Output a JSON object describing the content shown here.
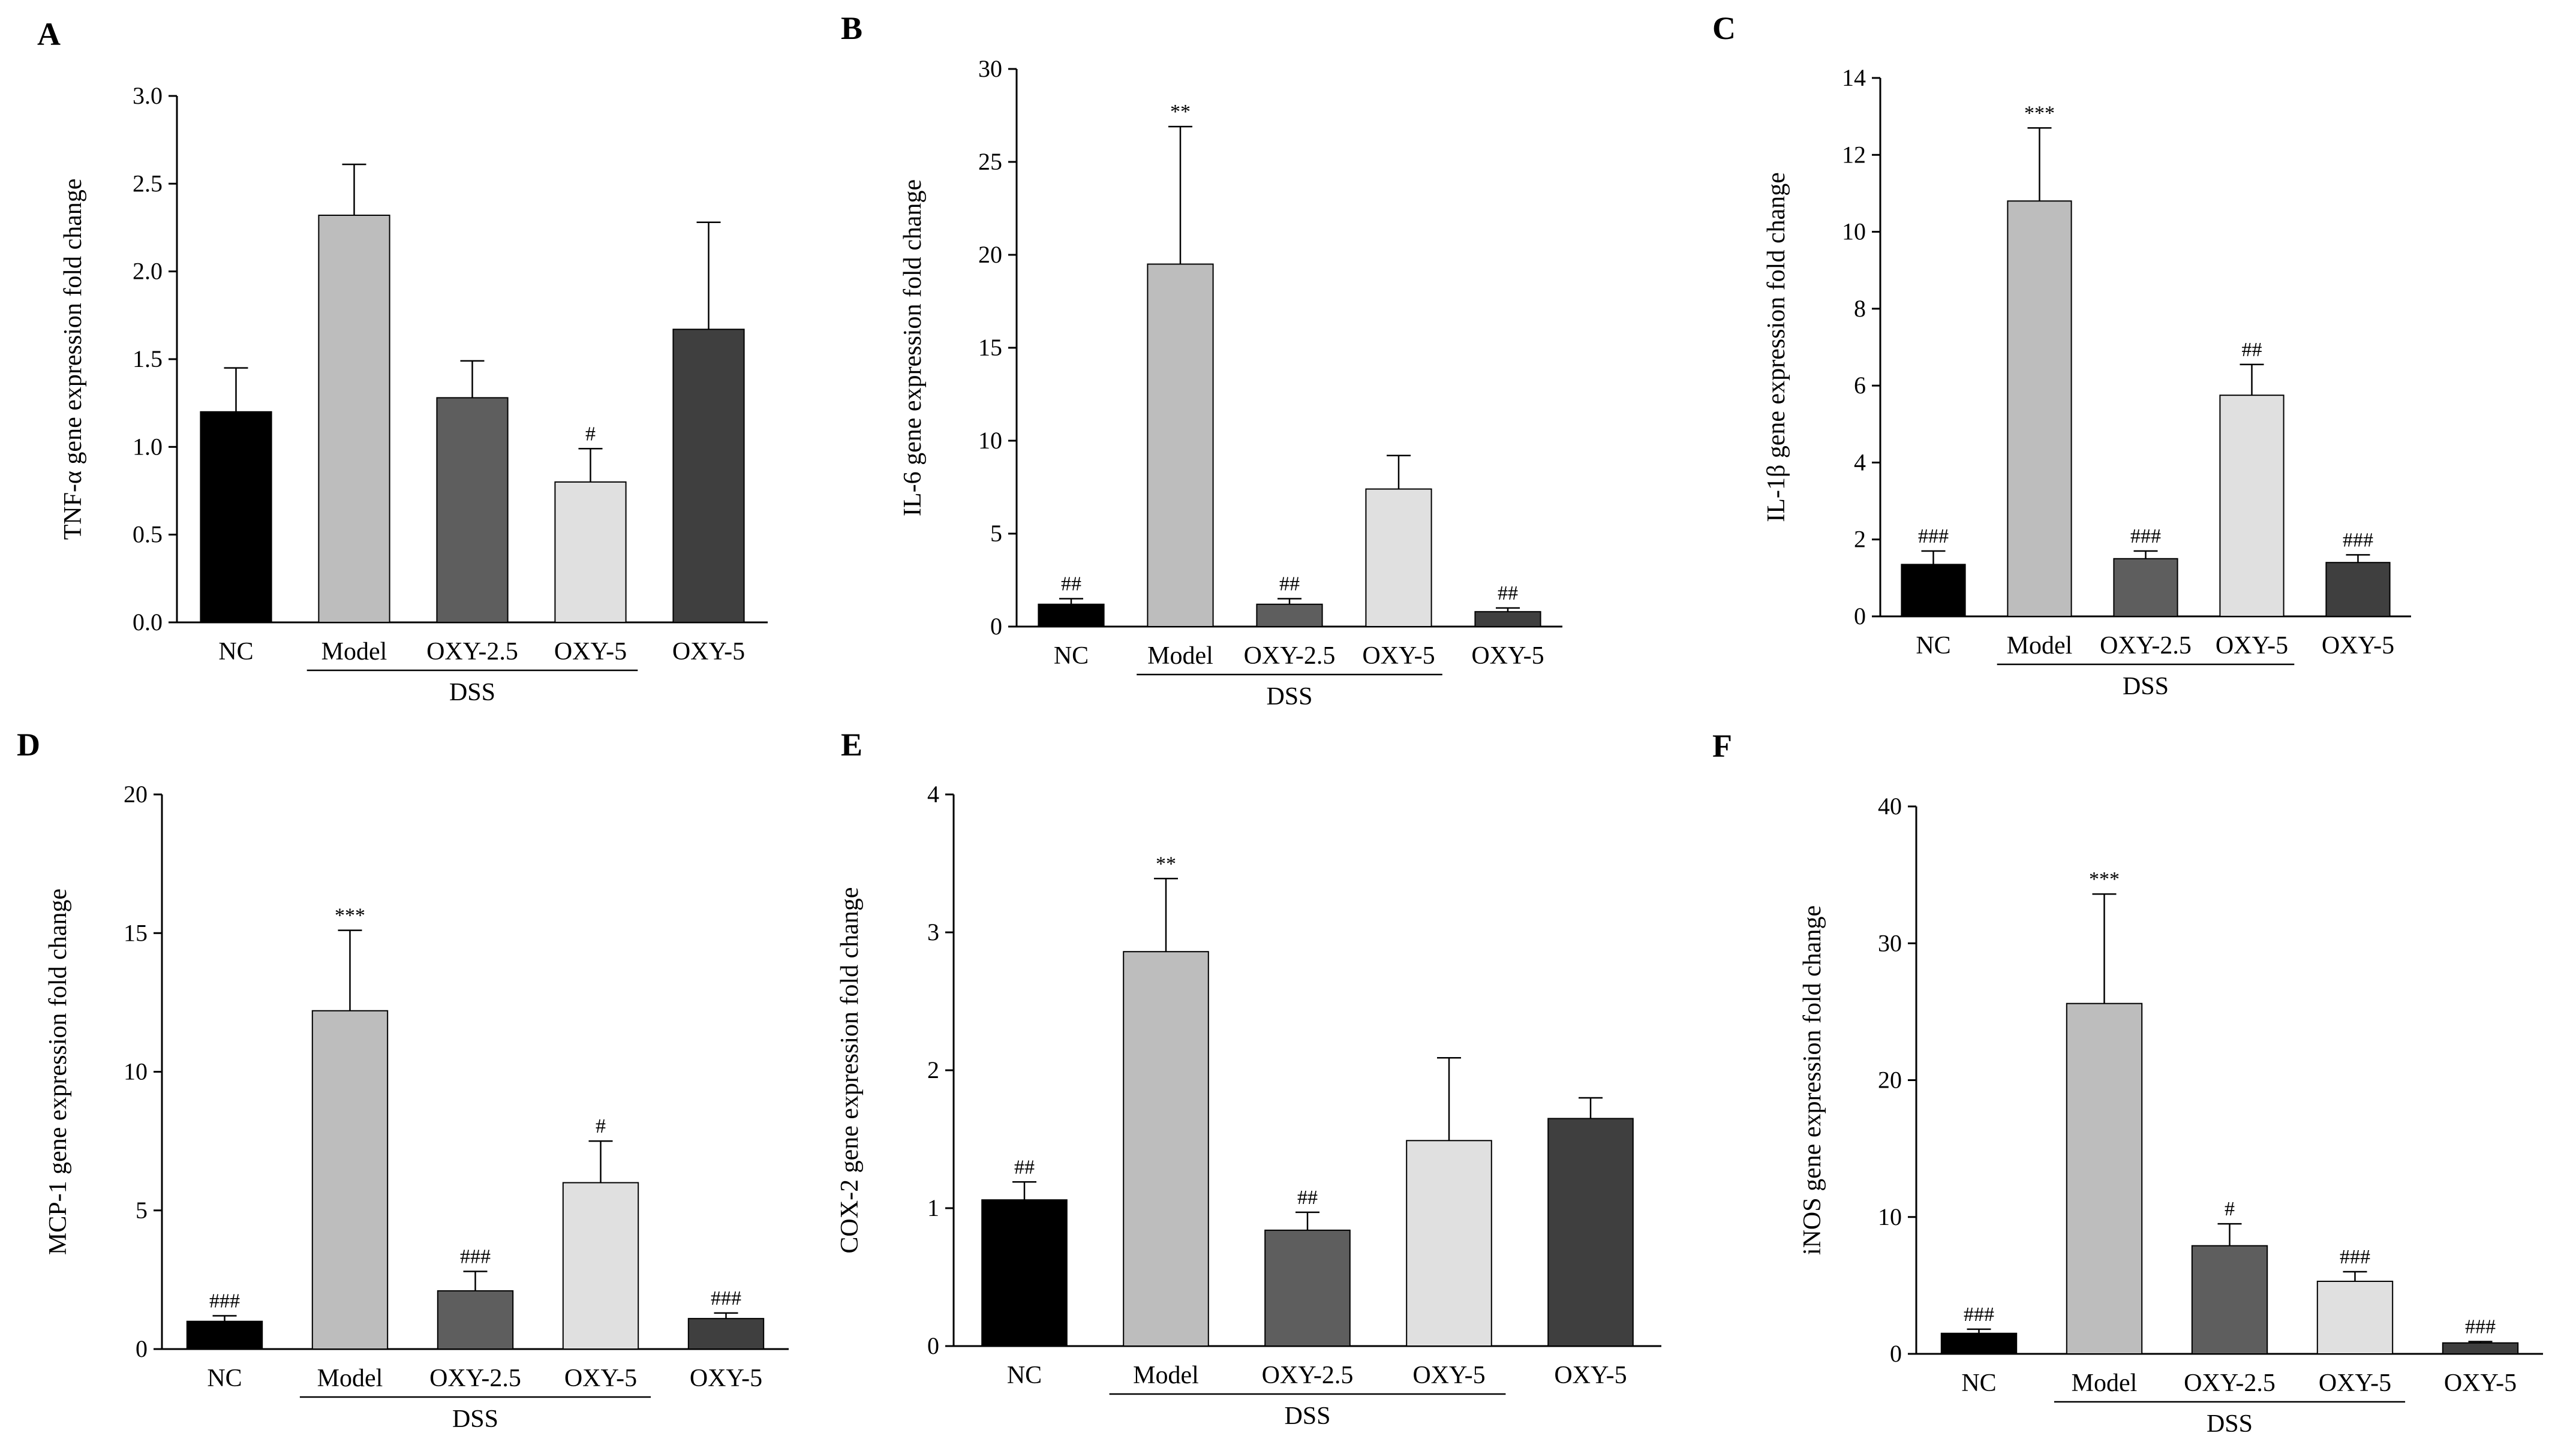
{
  "chart_data": [
    {
      "type": "bar",
      "panel": "A",
      "title": "",
      "xlabel": "",
      "ylabel": "TNF-α gene expression fold change",
      "ylim": [
        0,
        3.0
      ],
      "yticks": [
        "0.0",
        "0.5",
        "1.0",
        "1.5",
        "2.0",
        "2.5",
        "3.0"
      ],
      "ytick_values": [
        0,
        0.5,
        1.0,
        1.5,
        2.0,
        2.5,
        3.0
      ],
      "categories": [
        "NC",
        "Model",
        "OXY-2.5",
        "OXY-5",
        "OXY-5"
      ],
      "values": [
        1.2,
        2.32,
        1.28,
        0.8,
        1.67
      ],
      "errors": [
        0.25,
        0.29,
        0.21,
        0.19,
        0.61
      ],
      "significance": [
        "",
        "",
        "",
        "#",
        ""
      ],
      "group_label": "DSS",
      "colors": [
        "#000000",
        "#bdbdbd",
        "#5e5e5e",
        "#e0e0e0",
        "#3f3f3f"
      ]
    },
    {
      "type": "bar",
      "panel": "B",
      "title": "",
      "xlabel": "",
      "ylabel": "IL-6 gene expression fold change",
      "ylim": [
        0,
        30
      ],
      "yticks": [
        "0",
        "5",
        "10",
        "15",
        "20",
        "25",
        "30"
      ],
      "ytick_values": [
        0,
        5,
        10,
        15,
        20,
        25,
        30
      ],
      "categories": [
        "NC",
        "Model",
        "OXY-2.5",
        "OXY-5",
        "OXY-5"
      ],
      "values": [
        1.2,
        19.5,
        1.2,
        7.4,
        0.8
      ],
      "errors": [
        0.3,
        7.4,
        0.3,
        1.8,
        0.2
      ],
      "significance": [
        "##",
        "**",
        "##",
        "",
        "##"
      ],
      "group_label": "DSS",
      "colors": [
        "#000000",
        "#bdbdbd",
        "#5e5e5e",
        "#e0e0e0",
        "#3f3f3f"
      ]
    },
    {
      "type": "bar",
      "panel": "C",
      "title": "",
      "xlabel": "",
      "ylabel": "IL-1β gene expression fold change",
      "ylim": [
        0,
        14
      ],
      "yticks": [
        "0",
        "2",
        "4",
        "6",
        "8",
        "10",
        "12",
        "14"
      ],
      "ytick_values": [
        0,
        2,
        4,
        6,
        8,
        10,
        12,
        14
      ],
      "categories": [
        "NC",
        "Model",
        "OXY-2.5",
        "OXY-5",
        "OXY-5"
      ],
      "values": [
        1.35,
        10.8,
        1.5,
        5.75,
        1.4
      ],
      "errors": [
        0.35,
        1.9,
        0.2,
        0.8,
        0.2
      ],
      "significance": [
        "###",
        "***",
        "###",
        "##",
        "###"
      ],
      "group_label": "DSS",
      "colors": [
        "#000000",
        "#bdbdbd",
        "#5e5e5e",
        "#e0e0e0",
        "#3f3f3f"
      ]
    },
    {
      "type": "bar",
      "panel": "D",
      "title": "",
      "xlabel": "",
      "ylabel": "MCP-1 gene expression fold change",
      "ylim": [
        0,
        20
      ],
      "yticks": [
        "0",
        "5",
        "10",
        "15",
        "20"
      ],
      "ytick_values": [
        0,
        5,
        10,
        15,
        20
      ],
      "categories": [
        "NC",
        "Model",
        "OXY-2.5",
        "OXY-5",
        "OXY-5"
      ],
      "values": [
        1.0,
        12.2,
        2.1,
        6.0,
        1.1
      ],
      "errors": [
        0.2,
        2.9,
        0.7,
        1.5,
        0.2
      ],
      "significance": [
        "###",
        "***",
        "###",
        "#",
        "###"
      ],
      "group_label": "DSS",
      "colors": [
        "#000000",
        "#bdbdbd",
        "#5e5e5e",
        "#e0e0e0",
        "#3f3f3f"
      ]
    },
    {
      "type": "bar",
      "panel": "E",
      "title": "",
      "xlabel": "",
      "ylabel": "COX-2 gene expression fold change",
      "ylim": [
        0,
        4
      ],
      "yticks": [
        "0",
        "1",
        "2",
        "3",
        "4"
      ],
      "ytick_values": [
        0,
        1,
        2,
        3,
        4
      ],
      "categories": [
        "NC",
        "Model",
        "OXY-2.5",
        "OXY-5",
        "OXY-5"
      ],
      "values": [
        1.06,
        2.86,
        0.84,
        1.49,
        1.65
      ],
      "errors": [
        0.13,
        0.53,
        0.13,
        0.6,
        0.15
      ],
      "significance": [
        "##",
        "**",
        "##",
        "",
        ""
      ],
      "group_label": "DSS",
      "colors": [
        "#000000",
        "#bdbdbd",
        "#5e5e5e",
        "#e0e0e0",
        "#3f3f3f"
      ]
    },
    {
      "type": "bar",
      "panel": "F",
      "title": "",
      "xlabel": "",
      "ylabel": "iNOS gene expression fold change",
      "ylim": [
        0,
        40
      ],
      "yticks": [
        "0",
        "10",
        "20",
        "30",
        "40"
      ],
      "ytick_values": [
        0,
        10,
        20,
        30,
        40
      ],
      "categories": [
        "NC",
        "Model",
        "OXY-2.5",
        "OXY-5",
        "OXY-5"
      ],
      "values": [
        1.5,
        25.6,
        7.9,
        5.3,
        0.8
      ],
      "errors": [
        0.3,
        8.0,
        1.6,
        0.7,
        0.1
      ],
      "significance": [
        "###",
        "***",
        "#",
        "###",
        "###"
      ],
      "group_label": "DSS",
      "colors": [
        "#000000",
        "#bdbdbd",
        "#5e5e5e",
        "#e0e0e0",
        "#3f3f3f"
      ]
    }
  ]
}
